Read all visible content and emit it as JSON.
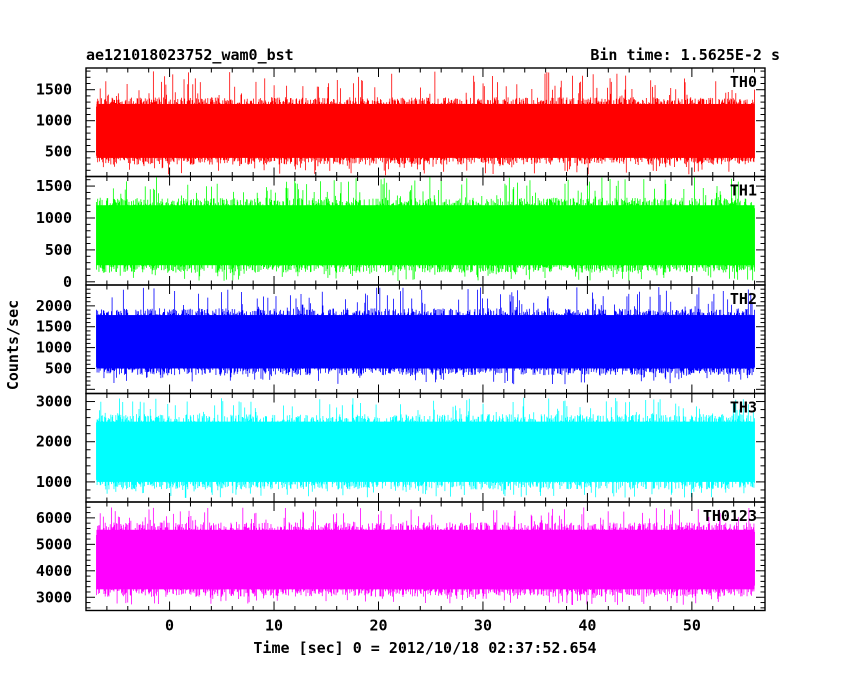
{
  "header": {
    "left_title": "ae121018023752_wam0_bst",
    "right_title": "Bin time: 1.5625E-2 s"
  },
  "chart_data": {
    "type": "line",
    "x_label": "Time [sec] 0 = 2012/10/18 02:37:52.654",
    "y_label": "Counts/sec",
    "x_range": [
      -8,
      57
    ],
    "x_ticks": [
      0,
      10,
      20,
      30,
      40,
      50
    ],
    "x_data_range": [
      -7.0,
      56.0
    ],
    "bin_time_s": 0.015625,
    "panels": [
      {
        "name": "TH0",
        "color": "#ff0000",
        "ylim": [
          100,
          1850
        ],
        "ticks": [
          500,
          1000,
          1500
        ],
        "typical_low": 400,
        "typical_high": 1270,
        "spike_min": 120,
        "spike_max": 1800
      },
      {
        "name": "TH1",
        "color": "#00ff00",
        "ylim": [
          -50,
          1650
        ],
        "ticks": [
          0,
          500,
          1000,
          1500
        ],
        "typical_low": 260,
        "typical_high": 1200,
        "spike_min": 10,
        "spike_max": 1650
      },
      {
        "name": "TH2",
        "color": "#0000ff",
        "ylim": [
          -100,
          2500
        ],
        "ticks": [
          500,
          1000,
          1500,
          2000
        ],
        "typical_low": 500,
        "typical_high": 1780,
        "spike_min": 120,
        "spike_max": 2450
      },
      {
        "name": "TH3",
        "color": "#00ffff",
        "ylim": [
          500,
          3200
        ],
        "ticks": [
          1000,
          2000,
          3000
        ],
        "typical_low": 1000,
        "typical_high": 2500,
        "spike_min": 600,
        "spike_max": 3100
      },
      {
        "name": "TH0123",
        "color": "#ff00ff",
        "ylim": [
          2500,
          6600
        ],
        "ticks": [
          3000,
          4000,
          5000,
          6000
        ],
        "typical_low": 3300,
        "typical_high": 5550,
        "spike_min": 2700,
        "spike_max": 6400
      }
    ]
  }
}
